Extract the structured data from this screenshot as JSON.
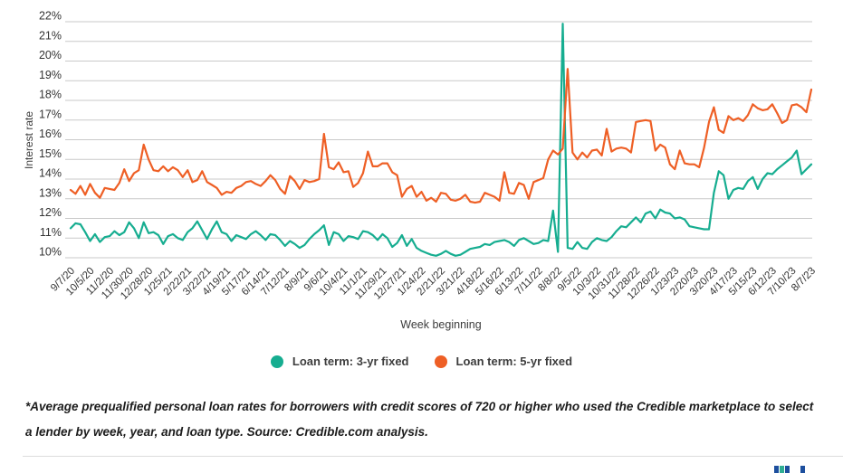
{
  "chart_data": {
    "type": "line",
    "title": "",
    "xlabel": "Week beginning",
    "ylabel": "Interest rate",
    "ylim": [
      10,
      22
    ],
    "grid": true,
    "legend_position": "bottom",
    "y_tick_labels": [
      "22%",
      "21%",
      "20%",
      "19%",
      "18%",
      "17%",
      "16%",
      "15%",
      "14%",
      "13%",
      "12%",
      "11%",
      "10%"
    ],
    "x_tick_step": 4,
    "x_tick_labels": [
      "9/7/20",
      "10/5/20",
      "11/2/20",
      "11/30/20",
      "12/28/20",
      "1/25/21",
      "2/22/21",
      "3/22/21",
      "4/19/21",
      "5/17/21",
      "6/14/21",
      "7/12/21",
      "8/9/21",
      "9/6/21",
      "10/4/21",
      "11/1/21",
      "11/29/21",
      "12/27/21",
      "1/24/22",
      "2/21/22",
      "3/21/22",
      "4/18/22",
      "5/16/22",
      "6/13/22",
      "7/11/22",
      "8/8/22",
      "9/5/22",
      "10/3/22",
      "10/31/22",
      "11/28/22",
      "12/26/22",
      "1/23/23",
      "2/20/23",
      "3/20/23",
      "4/17/23",
      "5/15/23",
      "6/12/23",
      "7/10/23",
      "8/7/23"
    ],
    "series": [
      {
        "name": "Loan term: 3-yr fixed",
        "color": "#16ad90",
        "values": [
          11.5,
          11.75,
          11.7,
          11.3,
          10.85,
          11.2,
          10.8,
          11.05,
          11.1,
          11.35,
          11.15,
          11.3,
          11.8,
          11.5,
          11.0,
          11.8,
          11.25,
          11.3,
          11.15,
          10.7,
          11.1,
          11.2,
          11.0,
          10.9,
          11.3,
          11.5,
          11.85,
          11.4,
          10.95,
          11.45,
          11.85,
          11.3,
          11.2,
          10.85,
          11.15,
          11.05,
          10.95,
          11.2,
          11.35,
          11.15,
          10.9,
          11.2,
          11.15,
          10.9,
          10.6,
          10.85,
          10.7,
          10.5,
          10.65,
          10.95,
          11.2,
          11.4,
          11.65,
          10.65,
          11.3,
          11.2,
          10.85,
          11.1,
          11.05,
          10.95,
          11.35,
          11.3,
          11.15,
          10.9,
          11.2,
          11.0,
          10.55,
          10.75,
          11.15,
          10.6,
          10.95,
          10.5,
          10.35,
          10.25,
          10.15,
          10.1,
          10.2,
          10.35,
          10.2,
          10.1,
          10.15,
          10.3,
          10.45,
          10.5,
          10.55,
          10.7,
          10.65,
          10.8,
          10.85,
          10.9,
          10.8,
          10.6,
          10.9,
          11.0,
          10.85,
          10.7,
          10.75,
          10.9,
          10.85,
          12.4,
          10.3,
          21.9,
          10.5,
          10.45,
          10.8,
          10.5,
          10.45,
          10.8,
          11.0,
          10.9,
          10.85,
          11.05,
          11.35,
          11.6,
          11.55,
          11.8,
          12.05,
          11.8,
          12.25,
          12.35,
          12.0,
          12.45,
          12.3,
          12.25,
          12.0,
          12.05,
          11.95,
          11.6,
          11.55,
          11.5,
          11.45,
          11.45,
          13.3,
          14.4,
          14.2,
          13.0,
          13.45,
          13.55,
          13.5,
          13.9,
          14.1,
          13.5,
          14.0,
          14.3,
          14.25,
          14.5,
          14.7,
          14.9,
          15.1,
          15.45,
          14.25,
          14.5,
          14.75
        ]
      },
      {
        "name": "Loan term: 5-yr fixed",
        "color": "#ee5f25",
        "values": [
          13.45,
          13.25,
          13.65,
          13.2,
          13.75,
          13.3,
          13.05,
          13.55,
          13.5,
          13.45,
          13.8,
          14.5,
          13.9,
          14.3,
          14.45,
          15.75,
          15.0,
          14.45,
          14.4,
          14.65,
          14.4,
          14.6,
          14.45,
          14.1,
          14.45,
          13.85,
          13.95,
          14.4,
          13.85,
          13.7,
          13.55,
          13.2,
          13.35,
          13.3,
          13.55,
          13.65,
          13.85,
          13.9,
          13.75,
          13.65,
          13.9,
          14.2,
          13.95,
          13.5,
          13.25,
          14.15,
          13.9,
          13.5,
          13.95,
          13.85,
          13.9,
          14.0,
          16.3,
          14.6,
          14.5,
          14.85,
          14.35,
          14.4,
          13.6,
          13.8,
          14.3,
          15.4,
          14.65,
          14.65,
          14.8,
          14.8,
          14.35,
          14.2,
          13.1,
          13.5,
          13.65,
          13.1,
          13.35,
          12.9,
          13.05,
          12.85,
          13.3,
          13.25,
          12.95,
          12.9,
          13.0,
          13.2,
          12.85,
          12.8,
          12.85,
          13.3,
          13.2,
          13.1,
          12.9,
          14.35,
          13.3,
          13.25,
          13.8,
          13.7,
          13.0,
          13.85,
          13.95,
          14.05,
          15.0,
          15.45,
          15.25,
          15.55,
          19.6,
          15.35,
          15.0,
          15.35,
          15.1,
          15.45,
          15.5,
          15.2,
          16.55,
          15.4,
          15.55,
          15.6,
          15.55,
          15.35,
          16.9,
          16.95,
          17.0,
          16.95,
          15.45,
          15.75,
          15.6,
          14.75,
          14.5,
          15.45,
          14.8,
          14.75,
          14.75,
          14.6,
          15.6,
          16.9,
          17.65,
          16.5,
          16.35,
          17.2,
          17.0,
          17.1,
          16.95,
          17.25,
          17.8,
          17.6,
          17.5,
          17.55,
          17.8,
          17.35,
          16.85,
          17.0,
          17.75,
          17.8,
          17.65,
          17.4,
          18.55
        ]
      }
    ]
  },
  "footnote": {
    "text": "*Average prequalified personal loan rates for borrowers with credit scores of 720 or higher who used the Credible marketplace to select a lender by week, year, and loan type. Source: Credible.com analysis."
  },
  "colors": {
    "gridline": "#c9c9c9",
    "axis_text": "#333333",
    "axis_title_text": "#3c3c3c",
    "legend_text": "#3d3d3d",
    "separator": "#dcdcdc",
    "logo_bar_colors": [
      "#1d4f9e",
      "#2fae93",
      "#1d4f9e",
      "#1d4f9e"
    ]
  }
}
